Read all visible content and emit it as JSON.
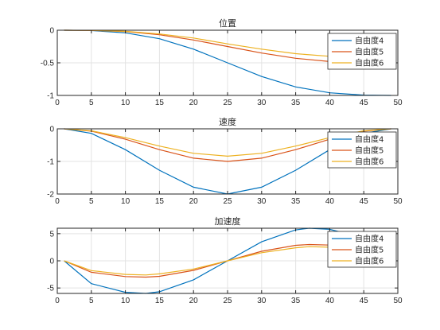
{
  "figure": {
    "background": "#ffffff"
  },
  "chart_data": [
    {
      "type": "line",
      "title": "位置",
      "xlabel": "",
      "ylabel": "",
      "xlim": [
        0,
        50
      ],
      "ylim": [
        -1,
        0
      ],
      "grid": true,
      "legend_position": "top-right",
      "x_ticks": [
        0,
        5,
        10,
        15,
        20,
        25,
        30,
        35,
        40,
        45,
        50
      ],
      "y_ticks": [
        -1,
        -0.5,
        0
      ],
      "y_tick_labels": [
        "-1",
        "-0.5",
        "0"
      ],
      "series": [
        {
          "name": "自由度4",
          "color": "#0072BD",
          "x": [
            1,
            5,
            10,
            15,
            20,
            25,
            30,
            35,
            40,
            45,
            49
          ],
          "y": [
            0,
            -0.005,
            -0.04,
            -0.13,
            -0.29,
            -0.5,
            -0.71,
            -0.87,
            -0.96,
            -0.995,
            -1
          ]
        },
        {
          "name": "自由度5",
          "color": "#D95319",
          "x": [
            1,
            5,
            10,
            15,
            20,
            25,
            30,
            35,
            40,
            45,
            49
          ],
          "y": [
            0,
            -0.004,
            -0.02,
            -0.07,
            -0.15,
            -0.25,
            -0.35,
            -0.43,
            -0.48,
            -0.5,
            -0.5
          ]
        },
        {
          "name": "自由度6",
          "color": "#EDB120",
          "x": [
            1,
            5,
            10,
            15,
            20,
            25,
            30,
            35,
            40,
            45,
            49
          ],
          "y": [
            0,
            -0.003,
            -0.017,
            -0.057,
            -0.12,
            -0.21,
            -0.29,
            -0.36,
            -0.4,
            -0.42,
            -0.42
          ]
        }
      ]
    },
    {
      "type": "line",
      "title": "速度",
      "xlabel": "",
      "ylabel": "",
      "xlim": [
        0,
        50
      ],
      "ylim": [
        -2,
        0
      ],
      "grid": true,
      "legend_position": "top-right",
      "x_ticks": [
        0,
        5,
        10,
        15,
        20,
        25,
        30,
        35,
        40,
        45,
        50
      ],
      "y_ticks": [
        -2,
        -1,
        0
      ],
      "y_tick_labels": [
        "-2",
        "-1",
        "0"
      ],
      "series": [
        {
          "name": "自由度4",
          "color": "#0072BD",
          "x": [
            1,
            5,
            10,
            15,
            20,
            25,
            30,
            35,
            40,
            45,
            49
          ],
          "y": [
            0,
            -0.14,
            -0.64,
            -1.27,
            -1.79,
            -2.0,
            -1.79,
            -1.27,
            -0.64,
            -0.14,
            0
          ]
        },
        {
          "name": "自由度5",
          "color": "#D95319",
          "x": [
            1,
            5,
            10,
            15,
            20,
            25,
            30,
            35,
            40,
            45,
            49
          ],
          "y": [
            0,
            -0.07,
            -0.32,
            -0.64,
            -0.9,
            -1.0,
            -0.9,
            -0.64,
            -0.32,
            -0.07,
            0
          ]
        },
        {
          "name": "自由度6",
          "color": "#EDB120",
          "x": [
            1,
            5,
            10,
            15,
            20,
            25,
            30,
            35,
            40,
            45,
            49
          ],
          "y": [
            0,
            -0.06,
            -0.27,
            -0.53,
            -0.75,
            -0.84,
            -0.75,
            -0.53,
            -0.27,
            -0.06,
            0
          ]
        }
      ]
    },
    {
      "type": "line",
      "title": "加速度",
      "xlabel": "",
      "ylabel": "",
      "xlim": [
        0,
        50
      ],
      "ylim": [
        -6,
        6
      ],
      "grid": true,
      "legend_position": "top-right",
      "x_ticks": [
        0,
        5,
        10,
        15,
        20,
        25,
        30,
        35,
        40,
        45,
        50
      ],
      "y_ticks": [
        -5,
        0,
        5
      ],
      "y_tick_labels": [
        "-5",
        "0",
        "5"
      ],
      "series": [
        {
          "name": "自由度4",
          "color": "#0072BD",
          "x": [
            1,
            5,
            10,
            13,
            15,
            20,
            25,
            30,
            35,
            37,
            40,
            45,
            49
          ],
          "y": [
            0,
            -4.2,
            -5.8,
            -6.0,
            -5.7,
            -3.5,
            0,
            3.5,
            5.7,
            6.0,
            5.8,
            4.2,
            0
          ]
        },
        {
          "name": "自由度5",
          "color": "#D95319",
          "x": [
            1,
            5,
            10,
            13,
            15,
            20,
            25,
            30,
            35,
            37,
            40,
            45,
            49
          ],
          "y": [
            0,
            -2.1,
            -2.9,
            -3.0,
            -2.85,
            -1.75,
            0,
            1.75,
            2.85,
            3.0,
            2.9,
            2.1,
            0
          ]
        },
        {
          "name": "自由度6",
          "color": "#EDB120",
          "x": [
            1,
            5,
            10,
            13,
            15,
            20,
            25,
            30,
            35,
            37,
            40,
            45,
            49
          ],
          "y": [
            0,
            -1.8,
            -2.5,
            -2.6,
            -2.4,
            -1.5,
            0,
            1.5,
            2.4,
            2.6,
            2.5,
            1.8,
            0
          ]
        }
      ]
    }
  ]
}
